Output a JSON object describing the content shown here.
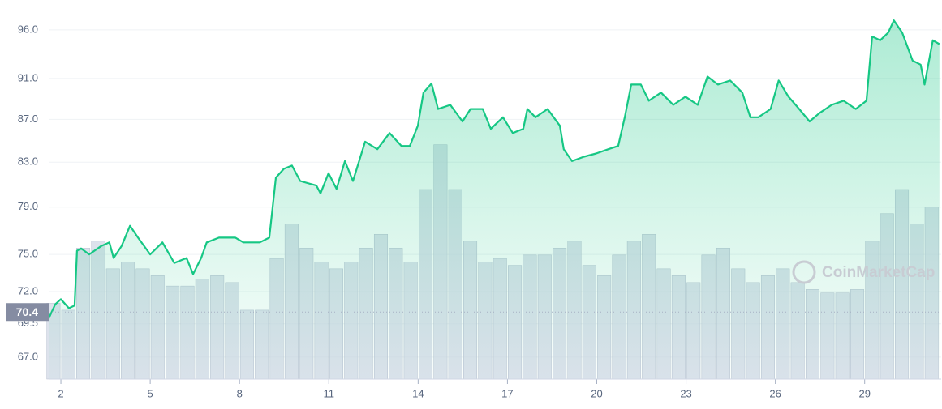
{
  "chart_data": {
    "type": "area",
    "log": true,
    "grid": true,
    "xlim": [
      1.59,
      31.57
    ],
    "xticks": [
      2,
      5,
      8,
      11,
      14,
      17,
      20,
      23,
      26,
      29
    ],
    "ylim": [
      65.4,
      99.2
    ],
    "yticks": [
      {
        "value": 96,
        "label": "96.0"
      },
      {
        "value": 91,
        "label": "91.0"
      },
      {
        "value": 87,
        "label": "87.0"
      },
      {
        "value": 83,
        "label": "83.0"
      },
      {
        "value": 79,
        "label": "79.0"
      },
      {
        "value": 75,
        "label": "75.0"
      },
      {
        "value": 72,
        "label": "72.0"
      },
      {
        "value": 69.5,
        "label": "69.5"
      },
      {
        "value": 67,
        "label": "67.0"
      }
    ],
    "y2lim": [
      0,
      110
    ],
    "reference_line": 70.4,
    "watermark": "CoinMarketCap",
    "series": [
      {
        "color": "#16c784",
        "x": [
          1.59,
          1.81,
          2,
          2.27,
          2.46,
          2.54,
          2.68,
          2.95,
          3.36,
          3.63,
          3.77,
          4.04,
          4.32,
          4.59,
          5,
          5.41,
          5.81,
          6.22,
          6.44,
          6.71,
          6.9,
          7.31,
          7.86,
          8.13,
          8.68,
          9,
          9.22,
          9.49,
          9.76,
          10.04,
          10.58,
          10.72,
          10.99,
          11.26,
          11.54,
          11.81,
          12.22,
          12.63,
          13.04,
          13.44,
          13.72,
          13.99,
          14.18,
          14.45,
          14.67,
          15.08,
          15.49,
          15.76,
          16.17,
          16.44,
          16.85,
          17.18,
          17.53,
          17.67,
          17.94,
          18.35,
          18.76,
          18.89,
          19.17,
          19.57,
          19.98,
          20.39,
          20.72,
          20.94,
          21.16,
          21.48,
          21.75,
          22.16,
          22.57,
          22.98,
          23.39,
          23.72,
          24.07,
          24.48,
          24.89,
          25.16,
          25.43,
          25.84,
          26.11,
          26.44,
          26.8,
          27.15,
          27.48,
          27.89,
          28.29,
          28.7,
          29.06,
          29.25,
          29.52,
          29.79,
          29.98,
          30.26,
          30.61,
          30.88,
          31.01,
          31.29,
          31.51
        ],
        "values": [
          69.9,
          71.0,
          71.4,
          70.7,
          70.9,
          75.3,
          75.5,
          75.0,
          75.7,
          76.0,
          74.7,
          75.7,
          77.4,
          76.4,
          75.0,
          76.0,
          74.3,
          74.7,
          73.4,
          74.7,
          76.0,
          76.4,
          76.4,
          76.0,
          76.0,
          76.4,
          81.6,
          82.4,
          82.7,
          81.3,
          80.9,
          80.2,
          82.0,
          80.6,
          83.1,
          81.3,
          84.9,
          84.2,
          85.7,
          84.5,
          84.5,
          86.4,
          89.6,
          90.5,
          88.0,
          88.4,
          86.8,
          88.0,
          88.0,
          86.1,
          87.2,
          85.7,
          86.1,
          88.0,
          87.2,
          88.0,
          86.4,
          84.2,
          83.1,
          83.5,
          83.8,
          84.2,
          84.5,
          87.2,
          90.4,
          90.4,
          88.8,
          89.6,
          88.4,
          89.2,
          88.4,
          91.2,
          90.4,
          90.8,
          89.6,
          87.2,
          87.2,
          88.0,
          90.8,
          89.2,
          88.0,
          86.8,
          87.6,
          88.4,
          88.8,
          88.0,
          88.8,
          95.3,
          94.9,
          95.7,
          97.0,
          95.7,
          92.8,
          92.4,
          90.4,
          94.9,
          94.5
        ]
      },
      {
        "color": "#cfd6e4",
        "axis": "y2",
        "x": [
          1.75,
          2.25,
          2.75,
          3.25,
          3.75,
          4.25,
          4.75,
          5.25,
          5.75,
          6.25,
          6.75,
          7.25,
          7.75,
          8.25,
          8.75,
          9.25,
          9.75,
          10.25,
          10.75,
          11.25,
          11.75,
          12.25,
          12.75,
          13.25,
          13.75,
          14.25,
          14.75,
          15.25,
          15.75,
          16.25,
          16.75,
          17.25,
          17.75,
          18.25,
          18.75,
          19.25,
          19.75,
          20.25,
          20.75,
          21.25,
          21.75,
          22.25,
          22.75,
          23.25,
          23.75,
          24.25,
          24.75,
          25.25,
          25.75,
          26.25,
          26.75,
          27.25,
          27.75,
          28.25,
          28.75,
          29.25,
          29.75,
          30.25,
          30.75,
          31.25
        ],
        "values": [
          22,
          20,
          38,
          40,
          32,
          34,
          32,
          30,
          27,
          27,
          29,
          30,
          28,
          20,
          20,
          35,
          45,
          38,
          34,
          32,
          34,
          38,
          42,
          38,
          34,
          55,
          68,
          55,
          40,
          34,
          35,
          33,
          36,
          36,
          38,
          40,
          33,
          30,
          36,
          40,
          42,
          32,
          30,
          28,
          36,
          38,
          32,
          28,
          30,
          32,
          28,
          26,
          25,
          25,
          26,
          40,
          48,
          55,
          45,
          50
        ]
      }
    ]
  }
}
